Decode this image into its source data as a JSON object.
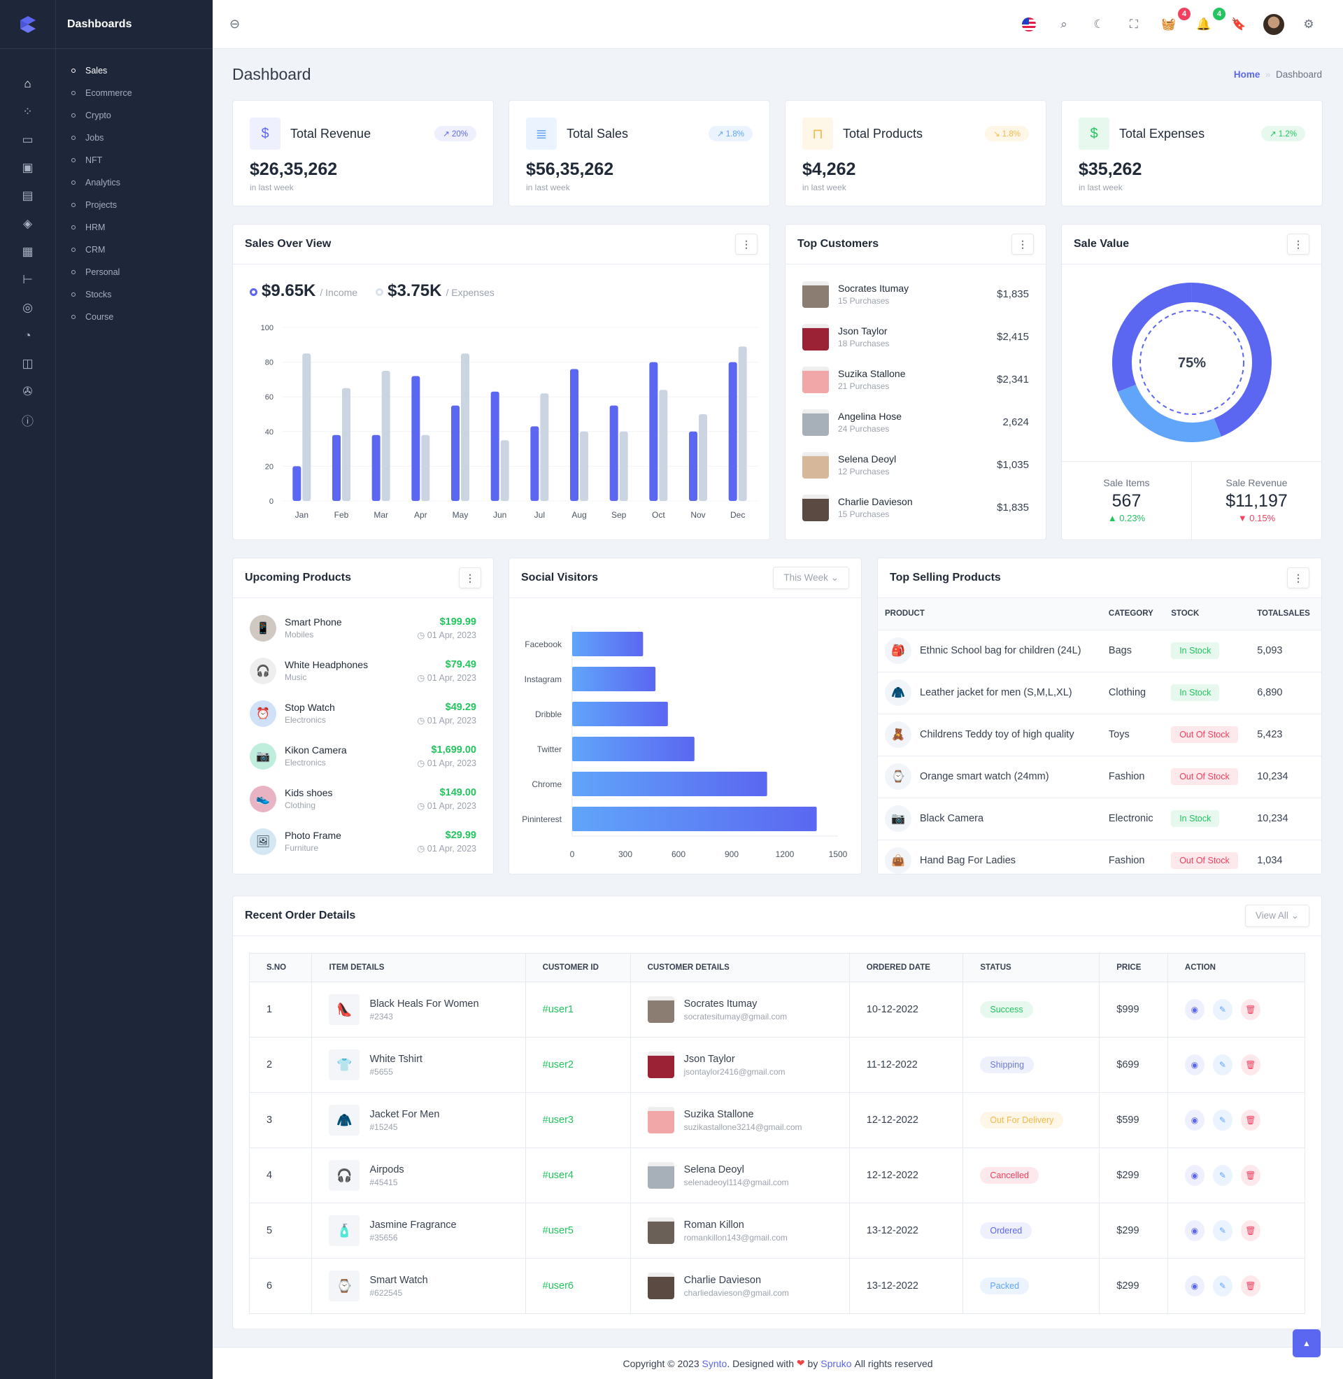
{
  "sidebar": {
    "title": "Dashboards",
    "rail_icons": [
      "home-icon",
      "apps-icon",
      "inbox-icon",
      "chip-icon",
      "file-icon",
      "layers-icon",
      "report-icon",
      "tree-icon",
      "map-pin-icon",
      "pie-chart-icon",
      "book-icon",
      "aperture-icon",
      "alert-circle-icon"
    ],
    "items": [
      {
        "label": "Sales",
        "active": true
      },
      {
        "label": "Ecommerce"
      },
      {
        "label": "Crypto"
      },
      {
        "label": "Jobs"
      },
      {
        "label": "NFT"
      },
      {
        "label": "Analytics"
      },
      {
        "label": "Projects"
      },
      {
        "label": "HRM"
      },
      {
        "label": "CRM"
      },
      {
        "label": "Personal"
      },
      {
        "label": "Stocks"
      },
      {
        "label": "Course"
      }
    ]
  },
  "header": {
    "cart_count": "4",
    "notification_count": "4"
  },
  "page": {
    "title": "Dashboard",
    "breadcrumb_home": "Home",
    "breadcrumb_sep": "»",
    "breadcrumb_current": "Dashboard"
  },
  "stats": [
    {
      "title": "Total Revenue",
      "value": "$26,35,262",
      "sub": "in last week",
      "change": "↗ 20%",
      "color": "#5b67f1",
      "bg": "#eef0fe",
      "icon": "receipt-dollar-icon"
    },
    {
      "title": "Total Sales",
      "value": "$56,35,262",
      "sub": "in last week",
      "change": "↗ 1.8%",
      "color": "#60a5fa",
      "bg": "#eaf3fe",
      "icon": "receipt-icon"
    },
    {
      "title": "Total Products",
      "value": "$4,262",
      "sub": "in last week",
      "change": "↘ 1.8%",
      "color": "#f5b849",
      "bg": "#fef6e6",
      "icon": "shopping-bag-icon"
    },
    {
      "title": "Total Expenses",
      "value": "$35,262",
      "sub": "in last week",
      "change": "↗ 1.2%",
      "color": "#22c55e",
      "bg": "#e7f9ee",
      "icon": "dollar-circle-icon"
    }
  ],
  "sales_overview": {
    "title": "Sales Over View",
    "income_value": "$9.65K",
    "income_label": "/ Income",
    "expenses_value": "$3.75K",
    "expenses_label": "/ Expenses"
  },
  "chart_data": [
    {
      "type": "bar",
      "categories": [
        "Jan",
        "Feb",
        "Mar",
        "Apr",
        "May",
        "Jun",
        "Jul",
        "Aug",
        "Sep",
        "Oct",
        "Nov",
        "Dec"
      ],
      "series": [
        {
          "name": "Income",
          "values": [
            20,
            38,
            38,
            72,
            55,
            63,
            43,
            76,
            55,
            80,
            40,
            80
          ],
          "color": "#5b67f1"
        },
        {
          "name": "Expenses",
          "values": [
            85,
            65,
            75,
            38,
            85,
            35,
            62,
            40,
            40,
            64,
            50,
            89
          ],
          "color": "#cbd5e1"
        }
      ],
      "ylim": [
        0,
        100
      ],
      "yticks": [
        0,
        20,
        40,
        60,
        80,
        100
      ],
      "grid": true
    },
    {
      "type": "bar",
      "orientation": "horizontal",
      "categories": [
        "Facebook",
        "Instagram",
        "Dribble",
        "Twitter",
        "Chrome",
        "Pininterest"
      ],
      "values": [
        400,
        470,
        540,
        690,
        1100,
        1380
      ],
      "xlim": [
        0,
        1500
      ],
      "xticks": [
        0,
        300,
        600,
        900,
        1200,
        1500
      ]
    },
    {
      "type": "pie",
      "donut": true,
      "values": [
        75,
        25
      ],
      "center_label": "75%",
      "colors": [
        "#5b67f1",
        "#60a5fa"
      ]
    }
  ],
  "top_customers": {
    "title": "Top Customers",
    "items": [
      {
        "name": "Socrates Itumay",
        "sub": "15 Purchases",
        "amount": "$1,835",
        "color": "#8b7d72"
      },
      {
        "name": "Json Taylor",
        "sub": "18 Purchases",
        "amount": "$2,415",
        "color": "#9b2234"
      },
      {
        "name": "Suzika Stallone",
        "sub": "21 Purchases",
        "amount": "$2,341",
        "color": "#f1a7a7"
      },
      {
        "name": "Angelina Hose",
        "sub": "24 Purchases",
        "amount": "2,624",
        "color": "#a7b0b8"
      },
      {
        "name": "Selena Deoyl",
        "sub": "12 Purchases",
        "amount": "$1,035",
        "color": "#d7b79a"
      },
      {
        "name": "Charlie Davieson",
        "sub": "15 Purchases",
        "amount": "$1,835",
        "color": "#5b4a42"
      }
    ]
  },
  "sale_value": {
    "title": "Sale Value",
    "items_label": "Sale Items",
    "items_value": "567",
    "items_change": "▲ 0.23%",
    "revenue_label": "Sale Revenue",
    "revenue_value": "$11,197",
    "revenue_change": "▼ 0.15%"
  },
  "upcoming": {
    "title": "Upcoming Products",
    "items": [
      {
        "name": "Smart Phone",
        "cat": "Mobiles",
        "price": "$199.99",
        "date": "01 Apr, 2023",
        "bg": "#cfc9c2",
        "glyph": "📱"
      },
      {
        "name": "White Headphones",
        "cat": "Music",
        "price": "$79.49",
        "date": "01 Apr, 2023",
        "bg": "#eeeeee",
        "glyph": "🎧"
      },
      {
        "name": "Stop Watch",
        "cat": "Electronics",
        "price": "$49.29",
        "date": "01 Apr, 2023",
        "bg": "#cfe0f7",
        "glyph": "⏰"
      },
      {
        "name": "Kikon Camera",
        "cat": "Electronics",
        "price": "$1,699.00",
        "date": "01 Apr, 2023",
        "bg": "#bfeedd",
        "glyph": "📷"
      },
      {
        "name": "Kids shoes",
        "cat": "Clothing",
        "price": "$149.00",
        "date": "01 Apr, 2023",
        "bg": "#e8b4c4",
        "glyph": "👟"
      },
      {
        "name": "Photo Frame",
        "cat": "Furniture",
        "price": "$29.99",
        "date": "01 Apr, 2023",
        "bg": "#d3e8f2",
        "glyph": "🖼"
      }
    ]
  },
  "social": {
    "title": "Social Visitors",
    "filter": "This Week"
  },
  "top_selling": {
    "title": "Top Selling Products",
    "headers": [
      "PRODUCT",
      "CATEGORY",
      "STOCK",
      "TOTALSALES"
    ],
    "rows": [
      {
        "product": "Ethnic School bag for children (24L)",
        "category": "Bags",
        "stock": "In Stock",
        "in": true,
        "sales": "5,093",
        "glyph": "🎒"
      },
      {
        "product": "Leather jacket for men (S,M,L,XL)",
        "category": "Clothing",
        "stock": "In Stock",
        "in": true,
        "sales": "6,890",
        "glyph": "🧥"
      },
      {
        "product": "Childrens Teddy toy of high quality",
        "category": "Toys",
        "stock": "Out Of Stock",
        "in": false,
        "sales": "5,423",
        "glyph": "🧸"
      },
      {
        "product": "Orange smart watch (24mm)",
        "category": "Fashion",
        "stock": "Out Of Stock",
        "in": false,
        "sales": "10,234",
        "glyph": "⌚"
      },
      {
        "product": "Black Camera",
        "category": "Electronic",
        "stock": "In Stock",
        "in": true,
        "sales": "10,234",
        "glyph": "📷"
      },
      {
        "product": "Hand Bag For Ladies",
        "category": "Fashion",
        "stock": "Out Of Stock",
        "in": false,
        "sales": "1,034",
        "glyph": "👜"
      }
    ]
  },
  "orders": {
    "title": "Recent Order Details",
    "view_all": "View All",
    "headers": [
      "S.NO",
      "ITEM DETAILS",
      "CUSTOMER ID",
      "CUSTOMER DETAILS",
      "ORDERED DATE",
      "STATUS",
      "PRICE",
      "ACTION"
    ],
    "rows": [
      {
        "no": "1",
        "item": "Black Heals For Women",
        "code": "#2343",
        "cid": "#user1",
        "cust": "Socrates Itumay",
        "email": "socratesitumay@gmail.com",
        "date": "10-12-2022",
        "status": "Success",
        "sc": "#22c55e",
        "sb": "#e7f9ee",
        "price": "$999",
        "glyph": "👠",
        "avc": "#8b7d72"
      },
      {
        "no": "2",
        "item": "White Tshirt",
        "code": "#5655",
        "cid": "#user2",
        "cust": "Json Taylor",
        "email": "jsontaylor2416@gmail.com",
        "date": "11-12-2022",
        "status": "Shipping",
        "sc": "#6b7bd8",
        "sb": "#eef0fb",
        "price": "$699",
        "glyph": "👕",
        "avc": "#9b2234"
      },
      {
        "no": "3",
        "item": "Jacket For Men",
        "code": "#15245",
        "cid": "#user3",
        "cust": "Suzika Stallone",
        "email": "suzikastallone3214@gmail.com",
        "date": "12-12-2022",
        "status": "Out For Delivery",
        "sc": "#f5b849",
        "sb": "#fef6e6",
        "price": "$599",
        "glyph": "🧥",
        "avc": "#f1a7a7"
      },
      {
        "no": "4",
        "item": "Airpods",
        "code": "#45415",
        "cid": "#user4",
        "cust": "Selena Deoyl",
        "email": "selenadeoyl114@gmail.com",
        "date": "12-12-2022",
        "status": "Cancelled",
        "sc": "#f43f5e",
        "sb": "#fde8ec",
        "price": "$299",
        "glyph": "🎧",
        "avc": "#a7b0b8"
      },
      {
        "no": "5",
        "item": "Jasmine Fragrance",
        "code": "#35656",
        "cid": "#user5",
        "cust": "Roman Killon",
        "email": "romankillon143@gmail.com",
        "date": "13-12-2022",
        "status": "Ordered",
        "sc": "#5b67f1",
        "sb": "#eef0fe",
        "price": "$299",
        "glyph": "🧴",
        "avc": "#6b6058"
      },
      {
        "no": "6",
        "item": "Smart Watch",
        "code": "#622545",
        "cid": "#user6",
        "cust": "Charlie Davieson",
        "email": "charliedavieson@gmail.com",
        "date": "13-12-2022",
        "status": "Packed",
        "sc": "#60a5fa",
        "sb": "#eaf3fe",
        "price": "$299",
        "glyph": "⌚",
        "avc": "#5b4a42"
      }
    ]
  },
  "footer": {
    "prefix": "Copyright © 2023 ",
    "brand": "Synto",
    "mid": ". Designed with ",
    "heart": "❤",
    "by": " by ",
    "company": "Spruko",
    "suffix": " All rights reserved"
  }
}
